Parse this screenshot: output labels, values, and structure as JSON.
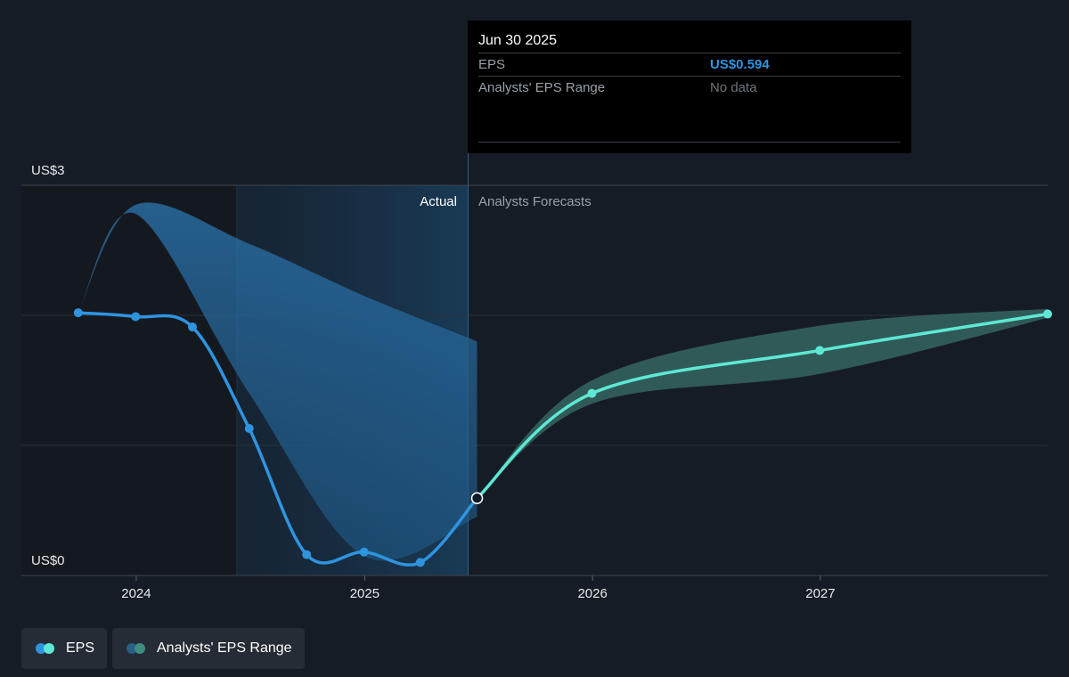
{
  "tooltip": {
    "date": "Jun 30 2025",
    "rows": [
      {
        "label": "EPS",
        "value": "US$0.594"
      },
      {
        "label": "Analysts' EPS Range",
        "value": "No data"
      }
    ]
  },
  "divider": {
    "actual_label": "Actual",
    "forecast_label": "Analysts Forecasts"
  },
  "legend": [
    {
      "label": "EPS",
      "colors": [
        "#2f94e0",
        "#5ee8d4"
      ]
    },
    {
      "label": "Analysts' EPS Range",
      "colors": [
        "#2a5f86",
        "#3f8c80"
      ]
    }
  ],
  "colors": {
    "background": "#161c25",
    "actual_line": "#2f94e0",
    "forecast_line": "#5ee8d4",
    "actual_band": "#2a6a9e",
    "forecast_band": "#3a6f6a"
  },
  "chart_data": {
    "type": "line",
    "y_tick_labels": [
      "US$3",
      "US$0"
    ],
    "ylim": [
      0,
      3
    ],
    "x_tick_labels": [
      "2024",
      "2025",
      "2026",
      "2027"
    ],
    "xlim": [
      "2023-07-01",
      "2027-12-31"
    ],
    "series": [
      {
        "name": "EPS",
        "points": [
          {
            "x": "2023-09-30",
            "y": 2.02
          },
          {
            "x": "2023-12-31",
            "y": 1.99
          },
          {
            "x": "2024-03-31",
            "y": 1.91
          },
          {
            "x": "2024-06-30",
            "y": 1.13
          },
          {
            "x": "2024-09-30",
            "y": 0.16
          },
          {
            "x": "2024-12-31",
            "y": 0.18
          },
          {
            "x": "2025-03-31",
            "y": 0.1
          },
          {
            "x": "2025-06-30",
            "y": 0.594
          }
        ]
      },
      {
        "name": "EPS forecast",
        "points": [
          {
            "x": "2025-06-30",
            "y": 0.594
          },
          {
            "x": "2025-12-31",
            "y": 1.4
          },
          {
            "x": "2026-12-31",
            "y": 1.73
          },
          {
            "x": "2027-12-31",
            "y": 2.01
          }
        ]
      }
    ],
    "bands": [
      {
        "name": "Analysts' EPS Range (past)",
        "upper": [
          {
            "x": "2023-09-30",
            "y": 2.02
          },
          {
            "x": "2023-12-31",
            "y": 2.85
          },
          {
            "x": "2024-06-30",
            "y": 2.55
          },
          {
            "x": "2024-12-31",
            "y": 2.15
          },
          {
            "x": "2025-06-30",
            "y": 1.8
          }
        ],
        "lower": [
          {
            "x": "2023-09-30",
            "y": 2.02
          },
          {
            "x": "2023-12-31",
            "y": 2.78
          },
          {
            "x": "2024-06-30",
            "y": 1.4
          },
          {
            "x": "2024-12-31",
            "y": 0.15
          },
          {
            "x": "2025-06-30",
            "y": 0.45
          }
        ]
      },
      {
        "name": "Analysts' EPS Range (forecast)",
        "upper": [
          {
            "x": "2025-06-30",
            "y": 0.594
          },
          {
            "x": "2025-12-31",
            "y": 1.5
          },
          {
            "x": "2026-12-31",
            "y": 1.92
          },
          {
            "x": "2027-12-31",
            "y": 2.05
          }
        ],
        "lower": [
          {
            "x": "2025-06-30",
            "y": 0.594
          },
          {
            "x": "2025-12-31",
            "y": 1.32
          },
          {
            "x": "2026-12-31",
            "y": 1.55
          },
          {
            "x": "2027-12-31",
            "y": 1.98
          }
        ]
      }
    ],
    "grid": true,
    "legend_position": "bottom-left"
  }
}
